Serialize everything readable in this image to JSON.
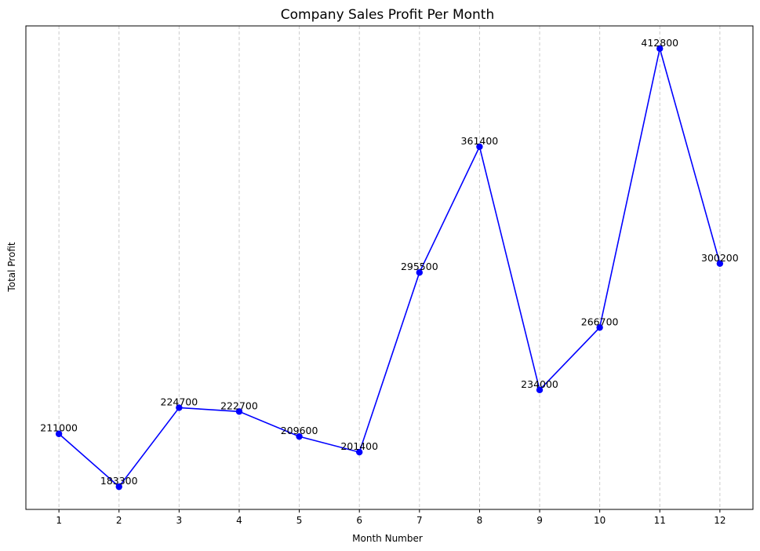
{
  "chart_data": {
    "type": "line",
    "title": "Company Sales Profit Per Month",
    "xlabel": "Month Number",
    "ylabel": "Total Profit",
    "x": [
      1,
      2,
      3,
      4,
      5,
      6,
      7,
      8,
      9,
      10,
      11,
      12
    ],
    "series": [
      {
        "values": [
          211000,
          183300,
          224700,
          222700,
          209600,
          201400,
          295500,
          361400,
          234000,
          266700,
          412800,
          300200
        ],
        "color": "#0000ff",
        "marker": "circle"
      }
    ],
    "data_labels": [
      "211000",
      "183300",
      "224700",
      "222700",
      "209600",
      "201400",
      "295500",
      "361400",
      "234000",
      "266700",
      "412800",
      "300200"
    ],
    "xlim": [
      0.45,
      12.55
    ],
    "ylim": [
      171425,
      424675
    ],
    "y_ticks_visible": false,
    "grid": "x-dashed",
    "grid_color": "#cccccc",
    "legend": "none"
  }
}
